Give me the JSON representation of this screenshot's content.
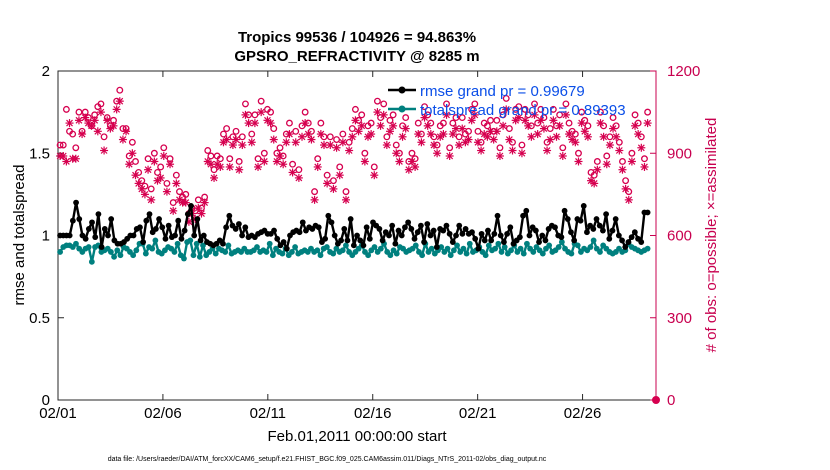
{
  "chart_data": {
    "type": "line",
    "title_line1": "Tropics 99536 / 104926 = 94.863%",
    "title_line2": "GPSRO_REFRACTIVITY @ 8285 m",
    "xlabel": "Feb.01,2011 00:00:00 start",
    "ylabel_left": "rmse and totalspread",
    "ylabel_right": "# of obs: o=possible; ×=assimilated",
    "footnote": "data file: /Users/raeder/DAI/ATM_forcXX/CAM6_setup/f.e21.FHIST_BGC.f09_025.CAM6assim.011/Diags_NTrS_2011-02/obs_diag_output.nc",
    "x_range": [
      1,
      29.5
    ],
    "x_ticks": [
      1,
      6,
      11,
      16,
      21,
      26
    ],
    "x_tick_labels": [
      "02/01",
      "02/06",
      "02/11",
      "02/16",
      "02/21",
      "02/26"
    ],
    "y_left_range": [
      0,
      2
    ],
    "y_left_ticks": [
      0,
      0.5,
      1,
      1.5,
      2
    ],
    "y_left_tick_labels": [
      "0",
      "0.5",
      "1",
      "1.5",
      "2"
    ],
    "y_right_range": [
      0,
      1200
    ],
    "y_right_ticks": [
      0,
      300,
      600,
      900,
      1200
    ],
    "y_right_tick_labels": [
      "0",
      "300",
      "600",
      "900",
      "1200"
    ],
    "legend": [
      {
        "name": "rmse grand pr = 0.99679",
        "color": "#000000"
      },
      {
        "name": "totalspread grand pr = 0.89393",
        "color": "#00807f"
      }
    ],
    "colors": {
      "rmse": "#000000",
      "spread": "#00807f",
      "obs": "#d6004f",
      "right_axis": "#c8004f"
    },
    "series": [
      {
        "name": "rmse",
        "values": [
          1.0,
          1.0,
          1.0,
          1.0,
          1.09,
          1.2,
          1.1,
          1.0,
          0.98,
          1.04,
          1.08,
          0.99,
          1.13,
          0.93,
          1.04,
          1.0,
          1.1,
          0.97,
          0.95,
          0.95,
          0.96,
          0.98,
          1.0,
          1.0,
          1.04,
          1.05,
          0.96,
          1.09,
          1.13,
          1.02,
          1.04,
          1.1,
          1.05,
          0.98,
          1.06,
          0.99,
          1.0,
          1.09,
          0.98,
          1.03,
          1.13,
          1.18,
          1.0,
          1.1,
          0.97,
          1.0,
          0.96,
          0.95,
          0.94,
          0.95,
          0.97,
          0.95,
          1.05,
          1.12,
          1.06,
          1.04,
          1.07,
          1.0,
          1.05,
          0.99,
          1.0,
          0.99,
          1.01,
          1.02,
          1.03,
          1.01,
          1.01,
          1.03,
          0.98,
          0.94,
          0.96,
          0.92,
          1.0,
          1.02,
          1.03,
          1.02,
          1.08,
          1.03,
          1.05,
          1.04,
          1.06,
          1.05,
          0.96,
          0.98,
          1.12,
          1.08,
          1.0,
          0.95,
          0.97,
          1.04,
          0.97,
          1.1,
          0.94,
          1.0,
          0.97,
          0.94,
          1.05,
          0.98,
          1.08,
          1.06,
          1.04,
          0.97,
          1.02,
          1.0,
          1.06,
          0.95,
          1.03,
          1.0,
          1.05,
          1.08,
          1.04,
          0.98,
          1.02,
          1.06,
          0.96,
          1.07,
          1.0,
          1.03,
          0.93,
          1.04,
          1.03,
          1.06,
          1.01,
          0.96,
          1.0,
          1.06,
          1.01,
          1.04,
          1.01,
          1.02,
          0.98,
          0.92,
          1.01,
          0.97,
          1.03,
          0.97,
          1.01,
          1.12,
          1.0,
          0.96,
          1.01,
          1.05,
          0.95,
          0.97,
          0.99,
          1.12,
          1.15,
          1.0,
          1.05,
          1.03,
          0.96,
          1.0,
          0.97,
          1.04,
          1.06,
          1.05,
          1.0,
          0.99,
          1.15,
          1.1,
          1.02,
          0.97,
          1.1,
          1.09,
          1.18,
          1.02,
          1.06,
          1.04,
          1.1,
          1.06,
          1.03,
          1.13,
          0.98,
          1.03,
          1.1,
          1.0,
          0.97,
          0.93,
          0.96,
          0.99,
          1.02,
          0.98,
          0.96,
          1.14,
          1.14
        ]
      },
      {
        "name": "totalspread",
        "values": [
          0.9,
          0.93,
          0.94,
          0.94,
          0.93,
          0.95,
          0.92,
          0.9,
          0.92,
          0.93,
          0.84,
          0.93,
          0.94,
          0.9,
          0.91,
          0.92,
          0.9,
          0.87,
          0.91,
          0.88,
          0.93,
          0.92,
          0.9,
          0.88,
          0.91,
          0.95,
          0.95,
          0.89,
          0.93,
          0.92,
          0.97,
          0.9,
          0.89,
          0.91,
          0.93,
          0.92,
          0.9,
          0.95,
          0.88,
          0.86,
          0.96,
          0.97,
          0.88,
          0.95,
          0.87,
          0.94,
          0.88,
          0.9,
          0.92,
          0.89,
          0.92,
          0.91,
          0.9,
          0.94,
          0.89,
          0.9,
          0.91,
          0.9,
          0.92,
          0.9,
          0.9,
          0.91,
          0.93,
          0.9,
          0.91,
          0.9,
          0.95,
          0.88,
          0.92,
          0.9,
          0.89,
          0.92,
          0.88,
          0.9,
          0.93,
          0.89,
          0.9,
          0.91,
          0.9,
          0.92,
          0.9,
          0.91,
          0.88,
          0.92,
          0.93,
          0.9,
          0.89,
          0.92,
          0.9,
          0.91,
          0.94,
          0.9,
          0.88,
          0.9,
          0.92,
          0.94,
          0.9,
          0.88,
          0.91,
          0.93,
          0.9,
          0.92,
          0.95,
          0.9,
          0.88,
          0.91,
          0.89,
          0.93,
          0.92,
          0.9,
          0.91,
          0.92,
          0.94,
          0.9,
          0.88,
          0.95,
          0.9,
          0.92,
          0.89,
          0.91,
          0.93,
          0.9,
          0.92,
          0.88,
          0.91,
          0.94,
          0.9,
          0.92,
          0.89,
          0.95,
          0.9,
          0.91,
          0.93,
          0.9,
          0.88,
          0.94,
          0.91,
          0.92,
          0.95,
          0.9,
          0.93,
          0.89,
          0.91,
          0.94,
          0.9,
          0.92,
          0.89,
          0.95,
          0.92,
          0.9,
          0.93,
          0.91,
          0.89,
          0.92,
          0.94,
          0.9,
          0.91,
          0.93,
          0.96,
          0.92,
          0.9,
          0.89,
          0.95,
          0.94,
          0.9,
          0.92,
          0.91,
          0.93,
          0.97,
          0.92,
          0.9,
          0.94,
          0.92,
          0.9,
          0.89,
          0.9,
          0.92,
          0.9,
          0.91,
          0.95,
          0.93,
          0.92,
          0.91,
          0.9,
          0.91,
          0.92
        ]
      },
      {
        "name": "obs_possible",
        "axis": "right",
        "values": [
          930,
          930,
          1060,
          980,
          970,
          920,
          1050,
          980,
          1050,
          1030,
          1000,
          1040,
          1070,
          1080,
          960,
          1030,
          1000,
          1020,
          1090,
          1130,
          990,
          990,
          890,
          940,
          870,
          830,
          800,
          780,
          880,
          770,
          900,
          830,
          850,
          920,
          790,
          880,
          720,
          820,
          760,
          740,
          750,
          680,
          700,
          690,
          730,
          700,
          740,
          910,
          890,
          840,
          890,
          880,
          970,
          990,
          880,
          960,
          980,
          870,
          960,
          1080,
          1040,
          970,
          1040,
          880,
          1090,
          900,
          1060,
          1050,
          990,
          900,
          920,
          890,
          970,
          1010,
          860,
          980,
          840,
          1000,
          1050,
          1010,
          980,
          760,
          880,
          1010,
          960,
          820,
          960,
          800,
          950,
          850,
          970,
          760,
          940,
          990,
          1060,
          1020,
          1040,
          900,
          1000,
          1010,
          850,
          1090,
          1030,
          1080,
          960,
          1020,
          1040,
          930,
          900,
          1000,
          1030,
          870,
          900,
          880,
          1010,
          970,
          1070,
          1040,
          1010,
          960,
          930,
          1000,
          1010,
          1080,
          920,
          1010,
          1030,
          960,
          1030,
          970,
          980,
          1060,
          1080,
          980,
          940,
          1010,
          1000,
          1020,
          980,
          1020,
          920,
          1040,
          1100,
          990,
          940,
          1060,
          1070,
          930,
          1060,
          1040,
          1000,
          1080,
          1010,
          1060,
          1030,
          940,
          990,
          1060,
          1000,
          1040,
          920,
          1080,
          1010,
          980,
          970,
          900,
          1050,
          1020,
          1000,
          830,
          820,
          870,
          1050,
          1000,
          890,
          960,
          1030,
          1000,
          940,
          870,
          800,
          760,
          900,
          1040,
          1010,
          960,
          880,
          1050
        ]
      },
      {
        "name": "obs_assimilated",
        "axis": "right",
        "values": [
          890,
          890,
          870,
          1010,
          880,
          880,
          1020,
          970,
          1030,
          1010,
          1000,
          1020,
          980,
          1050,
          910,
          1020,
          990,
          1000,
          1060,
          1090,
          950,
          980,
          860,
          900,
          820,
          790,
          770,
          750,
          840,
          730,
          870,
          800,
          810,
          890,
          760,
          860,
          690,
          790,
          730,
          720,
          720,
          650,
          680,
          660,
          700,
          680,
          720,
          870,
          860,
          810,
          860,
          850,
          940,
          950,
          850,
          930,
          950,
          840,
          930,
          1040,
          1010,
          940,
          1010,
          850,
          1050,
          870,
          1020,
          1010,
          950,
          870,
          890,
          860,
          940,
          970,
          830,
          940,
          810,
          960,
          1010,
          970,
          950,
          730,
          850,
          970,
          930,
          790,
          930,
          770,
          920,
          820,
          940,
          730,
          910,
          960,
          1020,
          980,
          1000,
          870,
          960,
          970,
          820,
          1050,
          1000,
          1040,
          930,
          980,
          1000,
          900,
          870,
          960,
          990,
          840,
          870,
          850,
          970,
          940,
          1030,
          1000,
          970,
          930,
          900,
          960,
          970,
          1040,
          890,
          970,
          990,
          930,
          990,
          940,
          950,
          1020,
          1040,
          940,
          910,
          970,
          960,
          980,
          950,
          980,
          890,
          1000,
          1060,
          950,
          910,
          1020,
          1030,
          900,
          1020,
          1000,
          960,
          1040,
          970,
          1020,
          990,
          910,
          950,
          1020,
          960,
          1000,
          890,
          1040,
          970,
          950,
          940,
          870,
          1010,
          980,
          960,
          800,
          790,
          840,
          1010,
          960,
          860,
          930,
          990,
          960,
          910,
          840,
          770,
          730,
          870,
          1000,
          970,
          920,
          850,
          1010
        ]
      }
    ]
  }
}
